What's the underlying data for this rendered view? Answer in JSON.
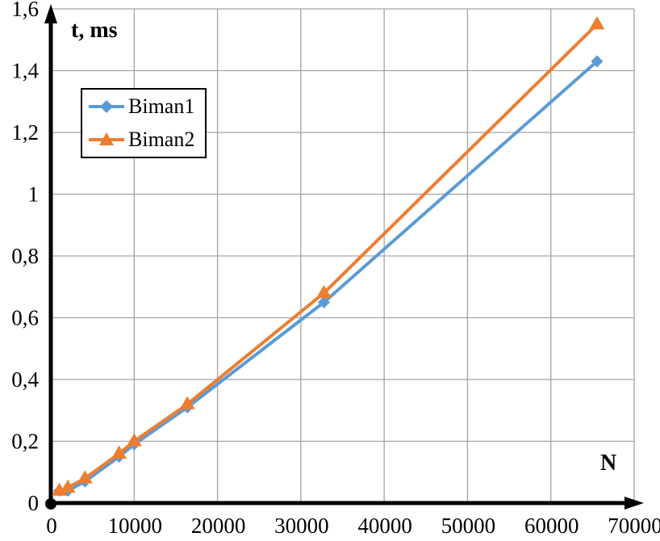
{
  "chart_data": {
    "type": "line",
    "title": "",
    "ylabel": "t, ms",
    "xlabel": "N",
    "x": [
      1024,
      2048,
      4096,
      8192,
      10000,
      16384,
      32768,
      65536
    ],
    "series": [
      {
        "name": "Biman1",
        "color": "#5B9BD5",
        "marker": "diamond",
        "values": [
          0.04,
          0.04,
          0.07,
          0.15,
          0.19,
          0.31,
          0.65,
          1.43
        ]
      },
      {
        "name": "Biman2",
        "color": "#ED7D31",
        "marker": "triangle",
        "values": [
          0.04,
          0.05,
          0.08,
          0.16,
          0.2,
          0.32,
          0.68,
          1.55
        ]
      }
    ],
    "xlim": [
      0,
      70000
    ],
    "ylim": [
      0,
      1.6
    ],
    "x_tick_values": [
      0,
      10000,
      20000,
      30000,
      40000,
      50000,
      60000,
      70000
    ],
    "x_tick_labels": [
      "0",
      "10000",
      "20000",
      "30000",
      "40000",
      "50000",
      "60000",
      "70000"
    ],
    "y_tick_values": [
      0,
      0.2,
      0.4,
      0.6,
      0.8,
      1.0,
      1.2,
      1.4,
      1.6
    ],
    "y_tick_labels": [
      "0",
      "0,2",
      "0,4",
      "0,6",
      "0,8",
      "1",
      "1,2",
      "1,4",
      "1,6"
    ],
    "grid": true,
    "grid_color": "#A3A3A3",
    "axis_color": "#000000",
    "legend_position": "top-left"
  }
}
